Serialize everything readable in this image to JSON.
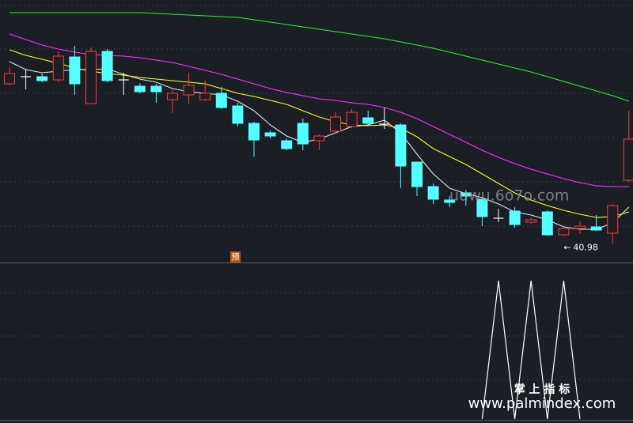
{
  "chart_data": {
    "type": "candlestick",
    "ylim": [
      39.3,
      55.9
    ],
    "up_color": "#ff3b3b",
    "down_color": "#54ffff",
    "flat_color": "#ffffff",
    "open": [
      50.6,
      51.05,
      51.05,
      50.85,
      52.3,
      49.35,
      52.65,
      50.85,
      50.45,
      50.45,
      49.6,
      49.9,
      49.6,
      50.0,
      49.2,
      48.1,
      47.5,
      47.0,
      48.1,
      47.0,
      47.6,
      47.9,
      48.45,
      48.05,
      48.0,
      45.65,
      44.1,
      43.25,
      43.7,
      43.3,
      42.1,
      42.55,
      41.85,
      42.5,
      41.05,
      41.45,
      41.55,
      41.15,
      44.5
    ],
    "high": [
      51.65,
      51.5,
      51.25,
      52.65,
      53.0,
      52.9,
      52.8,
      51.3,
      50.65,
      50.6,
      50.2,
      51.3,
      50.8,
      50.4,
      49.4,
      48.2,
      47.65,
      47.15,
      48.4,
      47.4,
      48.8,
      49.0,
      48.9,
      49.1,
      48.1,
      45.65,
      44.3,
      43.5,
      43.9,
      43.4,
      42.7,
      42.8,
      42.15,
      42.6,
      41.65,
      41.9,
      42.3,
      43.0,
      48.9
    ],
    "low": [
      50.5,
      50.25,
      50.7,
      50.7,
      49.9,
      49.35,
      50.7,
      49.9,
      50.0,
      49.4,
      48.75,
      49.35,
      49.5,
      49.0,
      47.9,
      46.0,
      47.15,
      46.4,
      46.4,
      46.4,
      47.5,
      47.8,
      48.0,
      47.75,
      44.0,
      43.5,
      43.0,
      42.8,
      42.9,
      41.6,
      41.85,
      41.5,
      41.75,
      41.0,
      40.98,
      41.1,
      41.3,
      40.5,
      44.4
    ],
    "close": [
      51.25,
      51.05,
      50.8,
      52.35,
      50.6,
      52.65,
      50.8,
      50.85,
      50.1,
      50.1,
      50.0,
      50.5,
      50.0,
      49.1,
      48.1,
      47.05,
      47.3,
      46.5,
      46.8,
      47.3,
      48.5,
      48.8,
      48.1,
      48.05,
      45.4,
      44.1,
      43.3,
      43.1,
      43.5,
      42.2,
      42.1,
      41.7,
      42.0,
      41.05,
      41.45,
      41.6,
      41.35,
      42.9,
      47.1
    ],
    "ma_lines": [
      {
        "color": "#e8e8e8",
        "values": [
          52.0,
          51.5,
          51.3,
          51.4,
          51.5,
          51.5,
          51.55,
          51.2,
          50.9,
          50.7,
          50.3,
          50.1,
          50.0,
          49.9,
          49.5,
          48.9,
          48.0,
          47.3,
          46.9,
          47.1,
          47.5,
          47.9,
          48.0,
          48.3,
          47.5,
          46.15,
          44.9,
          44.0,
          43.65,
          43.4,
          43.0,
          42.5,
          42.3,
          42.0,
          41.55,
          41.4,
          41.4,
          41.8,
          42.8
        ]
      },
      {
        "color": "#ffff33",
        "values": [
          52.75,
          52.4,
          52.15,
          51.9,
          51.6,
          51.4,
          51.25,
          51.15,
          51.0,
          50.9,
          50.8,
          50.7,
          50.6,
          50.3,
          50.0,
          49.8,
          49.55,
          49.3,
          48.9,
          48.5,
          48.2,
          48.0,
          47.95,
          48.0,
          47.8,
          47.25,
          46.5,
          46.0,
          45.5,
          44.9,
          44.3,
          43.7,
          43.25,
          42.9,
          42.6,
          42.35,
          42.15,
          42.2,
          42.5
        ]
      },
      {
        "color": "#ff33ff",
        "values": [
          53.75,
          53.4,
          53.05,
          52.8,
          52.6,
          52.45,
          52.4,
          52.35,
          52.25,
          52.1,
          51.95,
          51.7,
          51.45,
          51.2,
          50.9,
          50.6,
          50.3,
          50.05,
          49.85,
          49.65,
          49.55,
          49.4,
          49.3,
          49.1,
          48.8,
          48.4,
          47.9,
          47.4,
          46.9,
          46.4,
          45.95,
          45.55,
          45.2,
          44.9,
          44.6,
          44.35,
          44.15,
          44.1,
          44.1
        ]
      },
      {
        "color": "#33ee33",
        "values": [
          55.1,
          55.1,
          55.1,
          55.1,
          55.1,
          55.1,
          55.1,
          55.1,
          55.1,
          55.05,
          55.0,
          54.95,
          54.9,
          54.85,
          54.8,
          54.65,
          54.5,
          54.35,
          54.2,
          54.05,
          53.9,
          53.75,
          53.6,
          53.45,
          53.25,
          53.05,
          52.85,
          52.6,
          52.35,
          52.1,
          51.85,
          51.6,
          51.35,
          51.05,
          50.75,
          50.45,
          50.15,
          49.85,
          49.5
        ]
      }
    ],
    "low_label_arrow": "←",
    "indicator": {
      "color": "#ffffff",
      "ylim": [
        0,
        1
      ],
      "values": [
        null,
        null,
        null,
        null,
        null,
        null,
        null,
        null,
        null,
        null,
        null,
        null,
        null,
        null,
        null,
        null,
        null,
        null,
        null,
        null,
        null,
        null,
        null,
        null,
        null,
        null,
        null,
        null,
        null,
        0,
        1,
        0,
        1,
        0,
        1,
        0,
        null,
        null,
        null
      ]
    },
    "marker_text": "预",
    "watermark_1": "uuwu.6o7o.com",
    "watermark_2": "掌 上 指 标",
    "watermark_3": "www.palmindex.com"
  }
}
